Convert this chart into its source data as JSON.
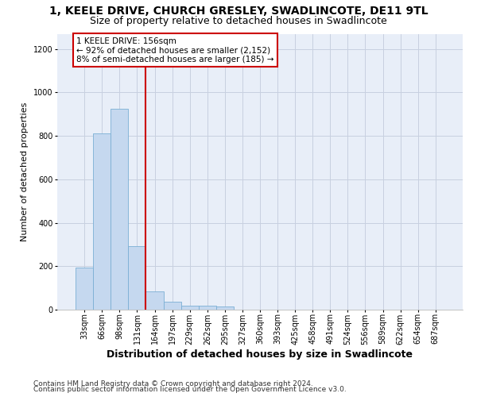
{
  "title": "1, KEELE DRIVE, CHURCH GRESLEY, SWADLINCOTE, DE11 9TL",
  "subtitle": "Size of property relative to detached houses in Swadlincote",
  "xlabel": "Distribution of detached houses by size in Swadlincote",
  "ylabel": "Number of detached properties",
  "footnote1": "Contains HM Land Registry data © Crown copyright and database right 2024.",
  "footnote2": "Contains public sector information licensed under the Open Government Licence v3.0.",
  "bin_labels": [
    "33sqm",
    "66sqm",
    "98sqm",
    "131sqm",
    "164sqm",
    "197sqm",
    "229sqm",
    "262sqm",
    "295sqm",
    "327sqm",
    "360sqm",
    "393sqm",
    "425sqm",
    "458sqm",
    "491sqm",
    "524sqm",
    "556sqm",
    "589sqm",
    "622sqm",
    "654sqm",
    "687sqm"
  ],
  "bar_values": [
    193,
    810,
    925,
    293,
    85,
    37,
    20,
    18,
    13,
    0,
    0,
    0,
    0,
    0,
    0,
    0,
    0,
    0,
    0,
    0,
    0
  ],
  "bar_color": "#c5d8ef",
  "bar_edge_color": "#7aafd4",
  "vline_bin_index": 4,
  "vline_color": "#cc0000",
  "annotation_line1": "1 KEELE DRIVE: 156sqm",
  "annotation_line2": "← 92% of detached houses are smaller (2,152)",
  "annotation_line3": "8% of semi-detached houses are larger (185) →",
  "annotation_box_edgecolor": "#cc0000",
  "annotation_box_facecolor": "#ffffff",
  "ylim": [
    0,
    1270
  ],
  "yticks": [
    0,
    200,
    400,
    600,
    800,
    1000,
    1200
  ],
  "plot_bg_color": "#e8eef8",
  "grid_color": "#c8d0e0",
  "title_fontsize": 10,
  "subtitle_fontsize": 9,
  "ylabel_fontsize": 8,
  "xlabel_fontsize": 9,
  "tick_fontsize": 7,
  "annot_fontsize": 7.5,
  "footnote_fontsize": 6.5
}
